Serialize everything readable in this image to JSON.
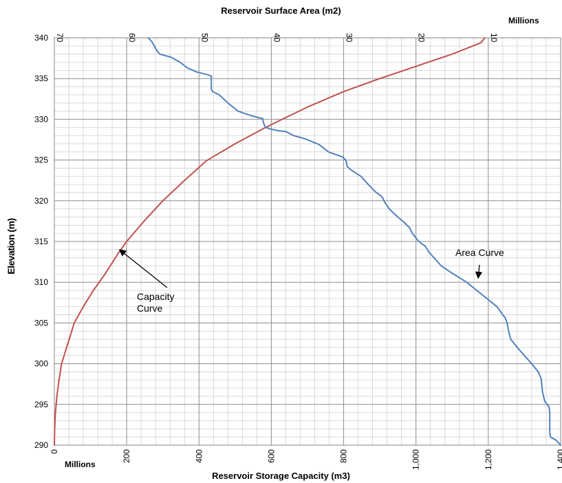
{
  "chart_data": {
    "type": "line",
    "title": "Reservoir Surface Area (m2)",
    "xlabel": "Reservoir Storage Capacity (m3)",
    "ylabel": "Elevation (m)",
    "top_axis_title": "Reservoir Surface Area (m2)",
    "top_axis_units": "Millions",
    "bottom_axis_units": "Millions",
    "ylim": [
      290,
      340
    ],
    "y_ticks": [
      290,
      295,
      300,
      305,
      310,
      315,
      320,
      325,
      330,
      335,
      340
    ],
    "x_bottom_lim": [
      0,
      1400
    ],
    "x_bottom_ticks": [
      0,
      200,
      400,
      600,
      800,
      1000,
      1200,
      1400
    ],
    "x_bottom_tick_labels": [
      "0",
      "200",
      "400",
      "600",
      "800",
      "1,000",
      "1,200",
      "1,400"
    ],
    "x_top_lim": [
      70,
      0
    ],
    "x_top_ticks": [
      70,
      60,
      50,
      40,
      30,
      20,
      10,
      0
    ],
    "x_top_reversed": true,
    "grid": true,
    "series": [
      {
        "name": "Capacity Curve",
        "axis": "bottom",
        "color": "#c0504d",
        "points": [
          [
            0,
            290
          ],
          [
            1,
            292
          ],
          [
            3,
            294
          ],
          [
            7,
            296
          ],
          [
            13,
            298
          ],
          [
            20,
            300
          ],
          [
            34,
            302
          ],
          [
            55,
            305
          ],
          [
            80,
            307
          ],
          [
            108,
            309
          ],
          [
            140,
            311
          ],
          [
            176,
            313.5
          ],
          [
            200,
            315
          ],
          [
            248,
            317.5
          ],
          [
            300,
            320
          ],
          [
            360,
            322.5
          ],
          [
            420,
            324.9
          ],
          [
            500,
            327
          ],
          [
            580,
            328.9
          ],
          [
            630,
            330
          ],
          [
            700,
            331.5
          ],
          [
            800,
            333.4
          ],
          [
            900,
            335
          ],
          [
            1000,
            336.5
          ],
          [
            1100,
            338
          ],
          [
            1180,
            339.4
          ],
          [
            1190,
            340
          ]
        ]
      },
      {
        "name": "Area Curve",
        "axis": "top",
        "color": "#4f81bd",
        "points": [
          [
            0,
            290
          ],
          [
            0.6,
            290.6
          ],
          [
            1.4,
            291
          ],
          [
            1.5,
            291.5
          ],
          [
            1.5,
            294
          ],
          [
            1.6,
            294.7
          ],
          [
            2.2,
            295.4
          ],
          [
            2.5,
            296.5
          ],
          [
            2.7,
            298.2
          ],
          [
            3.1,
            299
          ],
          [
            4.0,
            300
          ],
          [
            5.0,
            301
          ],
          [
            6.0,
            302
          ],
          [
            6.9,
            303
          ],
          [
            7.2,
            304
          ],
          [
            7.4,
            305
          ],
          [
            7.7,
            305.7
          ],
          [
            8.0,
            306
          ],
          [
            8.8,
            307
          ],
          [
            10.2,
            308
          ],
          [
            11.6,
            309
          ],
          [
            13.0,
            310
          ],
          [
            14.8,
            311
          ],
          [
            16.5,
            312
          ],
          [
            17.5,
            313
          ],
          [
            18.2,
            313.7
          ],
          [
            18.7,
            314.4
          ],
          [
            19.6,
            315
          ],
          [
            20.5,
            316
          ],
          [
            20.9,
            316.7
          ],
          [
            21.7,
            317.4
          ],
          [
            22.5,
            318
          ],
          [
            23.7,
            319
          ],
          [
            24.3,
            319.8
          ],
          [
            24.7,
            320.5
          ],
          [
            25.6,
            321.1
          ],
          [
            26.6,
            322
          ],
          [
            27.6,
            323
          ],
          [
            29.0,
            323.8
          ],
          [
            29.5,
            324.2
          ],
          [
            29.7,
            325
          ],
          [
            30.2,
            325.4
          ],
          [
            32.1,
            326
          ],
          [
            33.4,
            326.9
          ],
          [
            35.3,
            327.6
          ],
          [
            36.9,
            328
          ],
          [
            38.0,
            328.5
          ],
          [
            39.0,
            328.6
          ],
          [
            40.1,
            328.8
          ],
          [
            40.8,
            329
          ],
          [
            41.1,
            329.6
          ],
          [
            41.2,
            330.1
          ],
          [
            41.8,
            330.2
          ],
          [
            43.3,
            330.6
          ],
          [
            44.6,
            331
          ],
          [
            46.0,
            332
          ],
          [
            47.2,
            333
          ],
          [
            48.1,
            333.4
          ],
          [
            48.3,
            333.7
          ],
          [
            48.3,
            335.3
          ],
          [
            48.9,
            335.5
          ],
          [
            50.3,
            335.8
          ],
          [
            51.6,
            336.3
          ],
          [
            52.6,
            337
          ],
          [
            53.8,
            337.6
          ],
          [
            55.4,
            338
          ],
          [
            55.8,
            338.4
          ],
          [
            56.5,
            339.5
          ],
          [
            57.0,
            340
          ]
        ]
      }
    ],
    "annotations": [
      {
        "text": "Capacity\nCurve",
        "points_to": [
          180,
          314
        ]
      },
      {
        "text": "Area Curve",
        "points_to": [
          11.4,
          310.5
        ]
      }
    ]
  }
}
